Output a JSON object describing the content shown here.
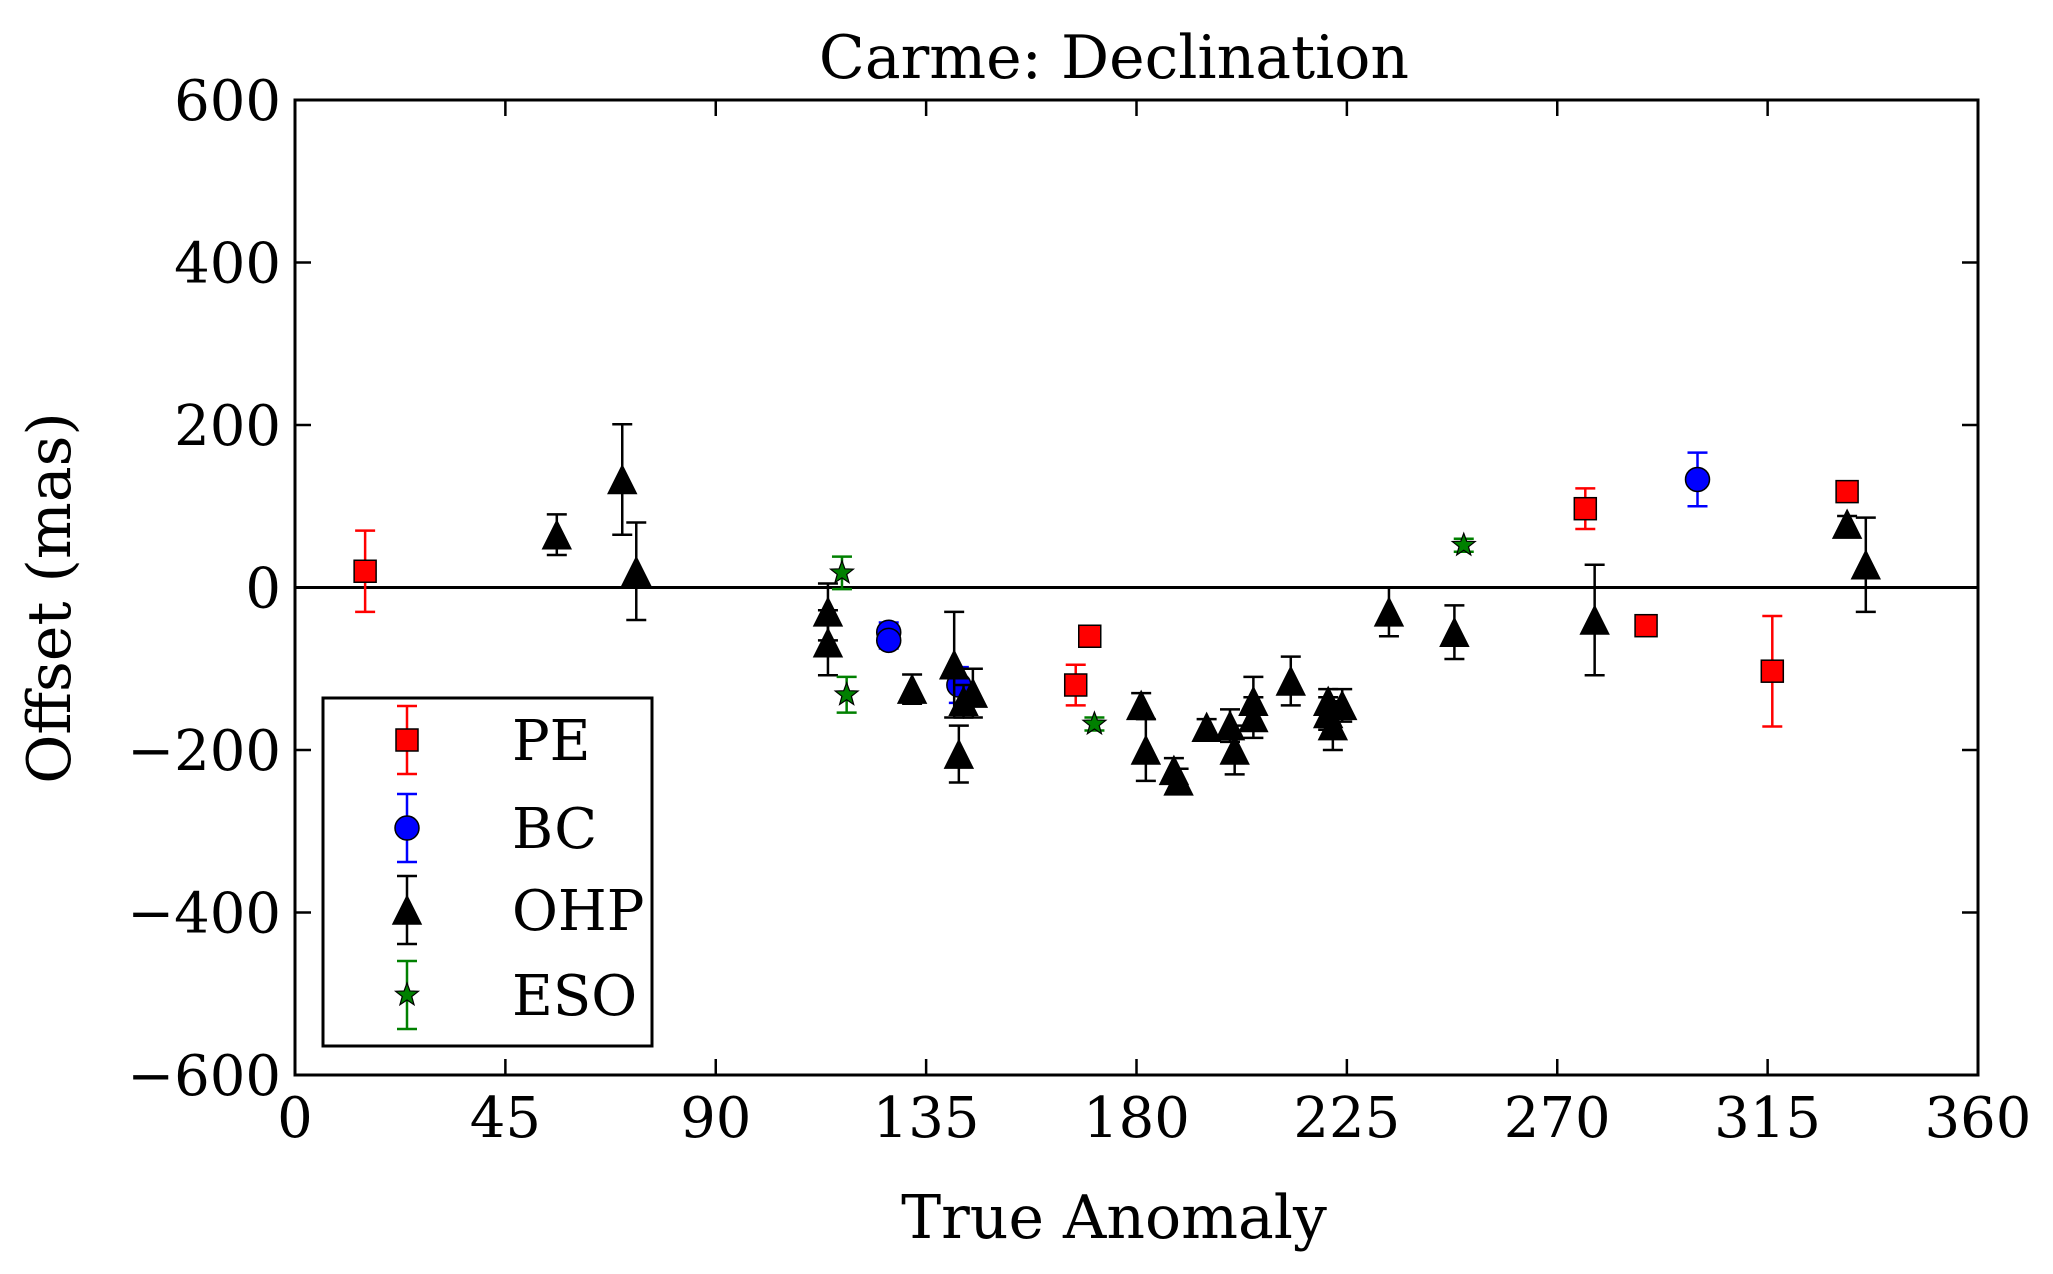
{
  "chart_data": {
    "type": "scatter",
    "title": "Carme: Declination",
    "xlabel": "True Anomaly",
    "ylabel": "Offset (mas)",
    "xlim": [
      0,
      360
    ],
    "ylim": [
      -600,
      600
    ],
    "xticks": [
      0,
      45,
      90,
      135,
      180,
      225,
      270,
      315,
      360
    ],
    "yticks": [
      600,
      400,
      200,
      0,
      -200,
      -400,
      -600
    ],
    "xtick_labels": [
      "0",
      "45",
      "90",
      "135",
      "180",
      "225",
      "270",
      "315",
      "360"
    ],
    "ytick_labels": [
      "600",
      "400",
      "200",
      "0",
      "−200",
      "−400",
      "−600"
    ],
    "zero_line": true,
    "grid": false,
    "legend_position": "lower-left",
    "series": [
      {
        "name": "PE",
        "marker": "square",
        "color": "#ff0000",
        "points": [
          {
            "x": 15,
            "y": 20,
            "err": 50
          },
          {
            "x": 167,
            "y": -120,
            "err": 25
          },
          {
            "x": 170,
            "y": -60,
            "err": 10
          },
          {
            "x": 276,
            "y": 97,
            "err": 25
          },
          {
            "x": 289,
            "y": -47,
            "err": 8
          },
          {
            "x": 316,
            "y": -103,
            "err": 68
          },
          {
            "x": 332,
            "y": 118,
            "err": 10
          }
        ]
      },
      {
        "name": "BC",
        "marker": "circle",
        "color": "#0000ff",
        "points": [
          {
            "x": 127,
            "y": -55,
            "err": 12
          },
          {
            "x": 127,
            "y": -65,
            "err": 10
          },
          {
            "x": 142,
            "y": -120,
            "err": 22
          },
          {
            "x": 300,
            "y": 133,
            "err": 33
          }
        ]
      },
      {
        "name": "OHP",
        "marker": "triangle",
        "color": "#000000",
        "points": [
          {
            "x": 56,
            "y": 65,
            "err": 25
          },
          {
            "x": 70,
            "y": 133,
            "err": 68
          },
          {
            "x": 73,
            "y": 20,
            "err": 60
          },
          {
            "x": 114,
            "y": -30,
            "err": 35
          },
          {
            "x": 114,
            "y": -68,
            "err": 40
          },
          {
            "x": 132,
            "y": -125,
            "err": 18
          },
          {
            "x": 141,
            "y": -95,
            "err": 65
          },
          {
            "x": 142,
            "y": -205,
            "err": 35
          },
          {
            "x": 143,
            "y": -140,
            "err": 20
          },
          {
            "x": 145,
            "y": -130,
            "err": 30
          },
          {
            "x": 181,
            "y": -145,
            "err": 15
          },
          {
            "x": 182,
            "y": -200,
            "err": 38
          },
          {
            "x": 188,
            "y": -225,
            "err": 15
          },
          {
            "x": 189,
            "y": -238,
            "err": 15
          },
          {
            "x": 195,
            "y": -172,
            "err": 10
          },
          {
            "x": 200,
            "y": -170,
            "err": 20
          },
          {
            "x": 201,
            "y": -200,
            "err": 30
          },
          {
            "x": 205,
            "y": -140,
            "err": 30
          },
          {
            "x": 205,
            "y": -160,
            "err": 25
          },
          {
            "x": 213,
            "y": -115,
            "err": 30
          },
          {
            "x": 221,
            "y": -155,
            "err": 20
          },
          {
            "x": 221,
            "y": -140,
            "err": 15
          },
          {
            "x": 222,
            "y": -170,
            "err": 30
          },
          {
            "x": 224,
            "y": -145,
            "err": 20
          },
          {
            "x": 234,
            "y": -30,
            "err": 30
          },
          {
            "x": 248,
            "y": -55,
            "err": 33
          },
          {
            "x": 278,
            "y": -40,
            "err": 68
          },
          {
            "x": 332,
            "y": 78,
            "err": 10
          },
          {
            "x": 336,
            "y": 28,
            "err": 58
          }
        ]
      },
      {
        "name": "ESO",
        "marker": "star",
        "color": "#008000",
        "points": [
          {
            "x": 117,
            "y": 18,
            "err": 20
          },
          {
            "x": 118,
            "y": -132,
            "err": 22
          },
          {
            "x": 171,
            "y": -168,
            "err": 8
          },
          {
            "x": 250,
            "y": 52,
            "err": 8
          }
        ]
      }
    ]
  }
}
